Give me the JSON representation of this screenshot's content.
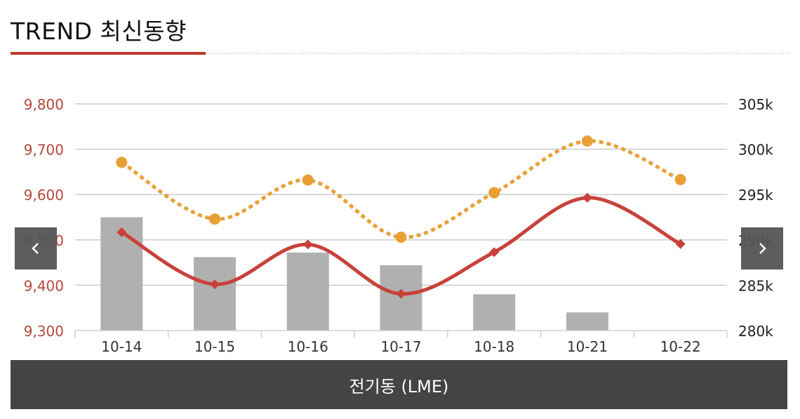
{
  "header": {
    "title": "TREND 최신동향"
  },
  "footer": {
    "label": "전기동 (LME)"
  },
  "colors": {
    "accent": "#c0392b",
    "bar": "#b0b0b0",
    "line_primary": "#c9413a",
    "line_dotted": "#e8a035",
    "left_axis_text": "#b5473a",
    "grid": "#cccccc"
  },
  "icons": {
    "prev": "chevron-left-icon",
    "next": "chevron-right-icon"
  },
  "chart_data": {
    "type": "bar+line",
    "categories": [
      "10-14",
      "10-15",
      "10-16",
      "10-17",
      "10-18",
      "10-21",
      "10-22"
    ],
    "left_axis": {
      "ticks": [
        "9,300",
        "9,400",
        "9,500",
        "9,600",
        "9,700",
        "9,800"
      ],
      "range": [
        9300,
        9800
      ]
    },
    "right_axis": {
      "ticks": [
        "280k",
        "285k",
        "290k",
        "295k",
        "300k",
        "305k"
      ],
      "range": [
        280000,
        305000
      ]
    },
    "series": [
      {
        "type": "bar",
        "axis": "right",
        "values": [
          292500,
          288100,
          288600,
          287200,
          284000,
          282000,
          null
        ]
      },
      {
        "type": "line",
        "axis": "left",
        "style": "solid",
        "marker": "diamond",
        "values": [
          9517,
          9402,
          9490,
          9381,
          9473,
          9593,
          9491
        ]
      },
      {
        "type": "line",
        "axis": "left",
        "style": "dotted",
        "marker": "circle",
        "values": [
          9671,
          9546,
          9632,
          9506,
          9604,
          9718,
          9633
        ]
      }
    ],
    "grid": true
  }
}
